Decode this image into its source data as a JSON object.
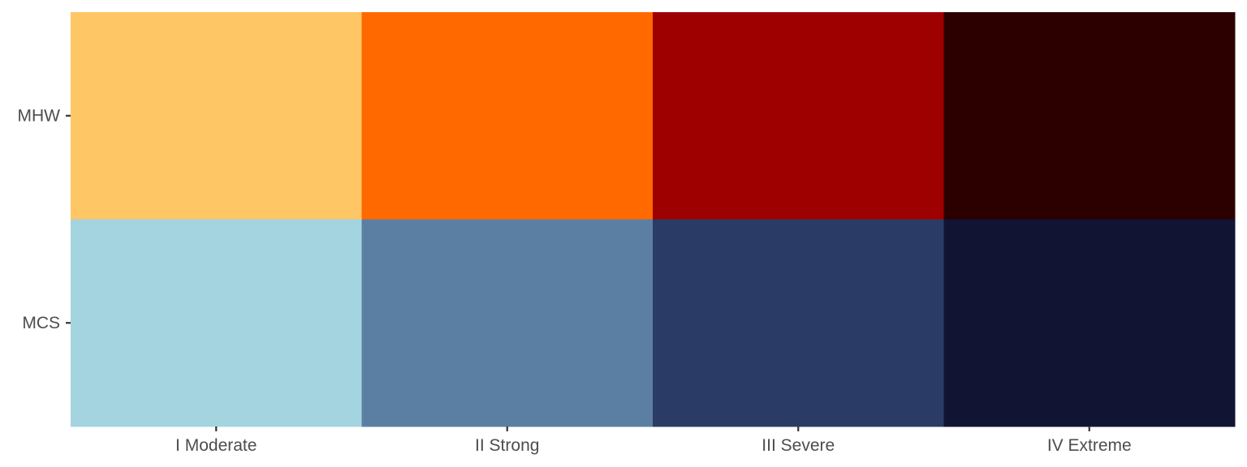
{
  "chart_data": {
    "type": "heatmap",
    "title": "",
    "xlabel": "",
    "ylabel": "",
    "x_categories": [
      "I Moderate",
      "II Strong",
      "III Severe",
      "IV Extreme"
    ],
    "y_categories": [
      "MHW",
      "MCS"
    ],
    "cells": [
      {
        "row": "MHW",
        "col": "I Moderate",
        "color": "#FEC665"
      },
      {
        "row": "MHW",
        "col": "II Strong",
        "color": "#FF6900"
      },
      {
        "row": "MHW",
        "col": "III Severe",
        "color": "#9E0000"
      },
      {
        "row": "MHW",
        "col": "IV Extreme",
        "color": "#2D0000"
      },
      {
        "row": "MCS",
        "col": "I Moderate",
        "color": "#A4D4E0"
      },
      {
        "row": "MCS",
        "col": "II Strong",
        "color": "#5B7FA3"
      },
      {
        "row": "MCS",
        "col": "III Severe",
        "color": "#2A3C66"
      },
      {
        "row": "MCS",
        "col": "IV Extreme",
        "color": "#111433"
      }
    ],
    "legend": "none",
    "grid": false
  }
}
